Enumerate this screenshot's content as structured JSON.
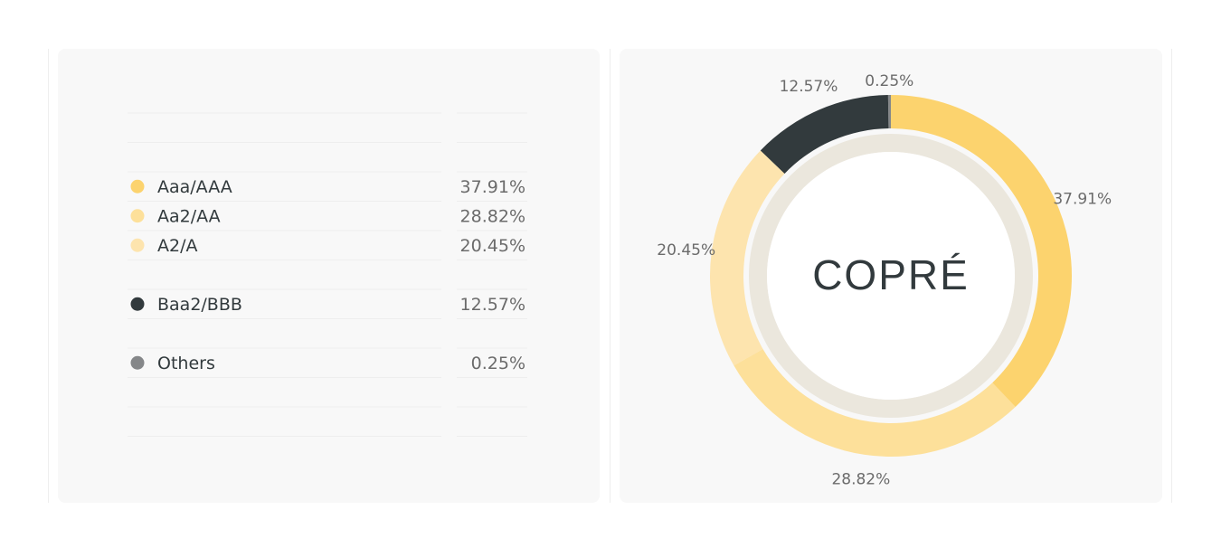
{
  "chart_data": {
    "type": "donut",
    "categories": [
      "Aaa/AAA",
      "Aa2/AA",
      "A2/A",
      "Baa2/BBB",
      "Others"
    ],
    "values": [
      37.91,
      28.82,
      20.45,
      12.57,
      0.25
    ],
    "value_labels": [
      "37.91%",
      "28.82%",
      "20.45%",
      "12.57%",
      "0.25%"
    ],
    "colors": [
      "#fcd36e",
      "#fde09a",
      "#fde4ae",
      "#323a3d",
      "#858789"
    ],
    "center_label": "COPRÉ"
  }
}
